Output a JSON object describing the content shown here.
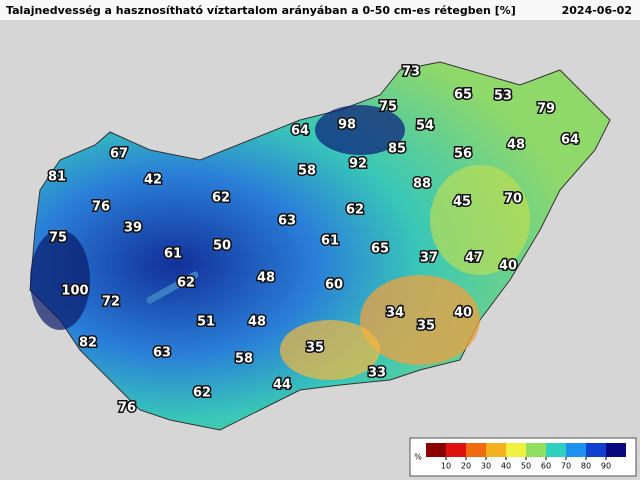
{
  "header": {
    "title": "Talajnedvesség a hasznosítható víztartalom arányában a 0-50 cm-es rétegben [%]",
    "date": "2024-06-02"
  },
  "stations": [
    73,
    65,
    53,
    79,
    75,
    54,
    64,
    98,
    48,
    64,
    67,
    92,
    85,
    56,
    81,
    42,
    58,
    88,
    76,
    62,
    62,
    45,
    70,
    39,
    63,
    75,
    61,
    50,
    61,
    65,
    37,
    47,
    40,
    62,
    48,
    60,
    100,
    72,
    34,
    35,
    40,
    51,
    48,
    82,
    63,
    35,
    58,
    33,
    44,
    62,
    76
  ],
  "colorbar": {
    "unit": "%",
    "ticks": [
      10,
      20,
      30,
      40,
      50,
      60,
      70,
      80,
      90
    ]
  }
}
